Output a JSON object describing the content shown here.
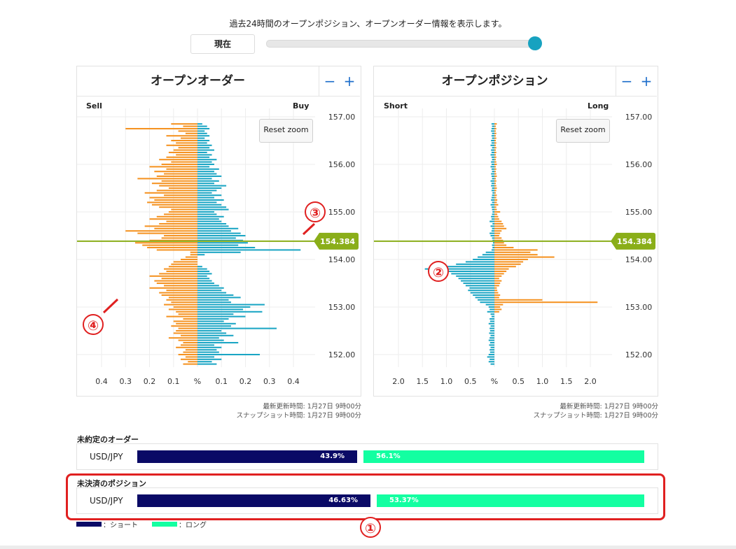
{
  "header": {
    "description": "過去24時間のオープンポジション、オープンオーダー情報を表示します。",
    "now_button": "現在"
  },
  "colors": {
    "sell_bar": "#f59221",
    "buy_bar": "#1aa5c4",
    "price_line": "#8aae19",
    "short_bar": "#0a0a66",
    "long_bar": "#13ffa1",
    "annotation": "#e02020"
  },
  "panels": {
    "orders": {
      "title": "オープンオーダー",
      "minus": "−",
      "plus": "+",
      "left_label": "Sell",
      "right_label": "Buy",
      "reset_zoom": "Reset zoom",
      "meta_line1": "最新更新時間: 1月27日 9時00分",
      "meta_line2": "スナップショット時間: 1月27日 9時00分"
    },
    "positions": {
      "title": "オープンポジション",
      "minus": "−",
      "plus": "+",
      "left_label": "Short",
      "right_label": "Long",
      "reset_zoom": "Reset zoom",
      "meta_line1": "最新更新時間: 1月27日 9時00分",
      "meta_line2": "スナップショット時間: 1月27日 9時00分"
    }
  },
  "chart_data": [
    {
      "type": "bar",
      "orientation": "horizontal-butterfly",
      "title": "オープンオーダー",
      "left_series_name": "Sell",
      "right_series_name": "Buy",
      "current_price": 154.384,
      "current_price_label": "154.384",
      "y_ticks": [
        "157.00",
        "156.00",
        "155.00",
        "154.00",
        "153.00",
        "152.00"
      ],
      "ylim": [
        151.75,
        157.1
      ],
      "x_ticks": [
        "0.4",
        "0.3",
        "0.2",
        "0.1",
        "%",
        "0.1",
        "0.2",
        "0.3",
        "0.4"
      ],
      "xlim": [
        -0.4,
        0.4
      ],
      "grid": true,
      "price_step": 0.05,
      "price_start": 151.8,
      "sell": [
        0.06,
        0.04,
        0.07,
        0.05,
        0.08,
        0.06,
        0.05,
        0.09,
        0.07,
        0.06,
        0.08,
        0.12,
        0.07,
        0.1,
        0.09,
        0.08,
        0.11,
        0.09,
        0.1,
        0.06,
        0.13,
        0.08,
        0.09,
        0.12,
        0.1,
        0.14,
        0.11,
        0.13,
        0.12,
        0.15,
        0.16,
        0.13,
        0.2,
        0.14,
        0.17,
        0.18,
        0.15,
        0.2,
        0.16,
        0.13,
        0.14,
        0.12,
        0.11,
        0.1,
        0.07,
        0.05,
        0.03,
        0.03,
        0.17,
        0.21,
        0.23,
        0.26,
        0.2,
        0.15,
        0.14,
        0.25,
        0.3,
        0.18,
        0.22,
        0.16,
        0.13,
        0.2,
        0.17,
        0.14,
        0.12,
        0.11,
        0.16,
        0.19,
        0.21,
        0.18,
        0.2,
        0.14,
        0.22,
        0.17,
        0.12,
        0.16,
        0.19,
        0.15,
        0.25,
        0.17,
        0.14,
        0.18,
        0.13,
        0.2,
        0.15,
        0.11,
        0.16,
        0.13,
        0.09,
        0.12,
        0.1,
        0.08,
        0.13,
        0.09,
        0.11,
        0.07,
        0.13,
        0.05,
        0.08,
        0.3,
        0.06,
        0.11
      ],
      "buy": [
        0.08,
        0.06,
        0.1,
        0.07,
        0.26,
        0.09,
        0.08,
        0.1,
        0.07,
        0.17,
        0.11,
        0.09,
        0.15,
        0.12,
        0.1,
        0.33,
        0.14,
        0.16,
        0.11,
        0.13,
        0.2,
        0.15,
        0.27,
        0.19,
        0.22,
        0.28,
        0.14,
        0.13,
        0.18,
        0.15,
        0.12,
        0.1,
        0.11,
        0.09,
        0.07,
        0.06,
        0.05,
        0.04,
        0.06,
        0.05,
        0.04,
        0.02,
        0,
        0,
        0,
        0,
        0.03,
        0.18,
        0.43,
        0.24,
        0.17,
        0.21,
        0.19,
        0.16,
        0.2,
        0.18,
        0.14,
        0.17,
        0.13,
        0.12,
        0.1,
        0.09,
        0.11,
        0.08,
        0.07,
        0.13,
        0.12,
        0.1,
        0.08,
        0.11,
        0.07,
        0.1,
        0.06,
        0.08,
        0.1,
        0.12,
        0.07,
        0.09,
        0.06,
        0.1,
        0.08,
        0.07,
        0.09,
        0.05,
        0.07,
        0.06,
        0.08,
        0.05,
        0.06,
        0.04,
        0.07,
        0.05,
        0.06,
        0.04,
        0.05,
        0.03,
        0.05,
        0.04,
        0.03,
        0.05,
        0.04,
        0.02
      ]
    },
    {
      "type": "bar",
      "orientation": "horizontal-butterfly",
      "title": "オープンポジション",
      "left_series_name": "Short",
      "right_series_name": "Long",
      "current_price": 154.384,
      "current_price_label": "154.384",
      "y_ticks": [
        "157.00",
        "156.00",
        "155.00",
        "154.00",
        "153.00",
        "152.00"
      ],
      "ylim": [
        151.75,
        157.1
      ],
      "x_ticks": [
        "2.0",
        "1.5",
        "1.0",
        "0.5",
        "%",
        "0.5",
        "1.0",
        "1.5",
        "2.0"
      ],
      "xlim": [
        -2.0,
        2.0
      ],
      "grid": true,
      "price_step": 0.05,
      "price_start": 151.8,
      "short": [
        0.08,
        0.12,
        0.1,
        0.15,
        0.12,
        0.09,
        0.1,
        0.08,
        0.11,
        0.09,
        0.12,
        0.1,
        0.08,
        0.11,
        0.09,
        0.1,
        0.08,
        0.12,
        0.09,
        0.1,
        0.06,
        0.08,
        0.15,
        0.1,
        0.12,
        0.18,
        0.3,
        0.35,
        0.4,
        0.45,
        0.5,
        0.55,
        0.52,
        0.6,
        0.65,
        0.7,
        0.75,
        0.8,
        0.9,
        0.95,
        1.45,
        1.0,
        0.8,
        0.6,
        0.45,
        0.35,
        0.25,
        0.18,
        0.06,
        0.04,
        0.05,
        0.03,
        0.04,
        0.05,
        0.08,
        0.1,
        0.06,
        0.05,
        0.08,
        0.04,
        0.1,
        0.06,
        0.07,
        0.05,
        0.04,
        0.05,
        0.06,
        0.08,
        0.05,
        0.07,
        0.06,
        0.05,
        0.04,
        0.06,
        0.05,
        0.07,
        0.06,
        0.08,
        0.05,
        0.06,
        0.07,
        0.05,
        0.06,
        0.08,
        0.06,
        0.07,
        0.05,
        0.06,
        0.08,
        0.06,
        0.07,
        0.05,
        0.08,
        0.06,
        0.07,
        0.05,
        0.06,
        0.05,
        0.07,
        0.06,
        0.05,
        0.06
      ],
      "long": [
        0,
        0,
        0,
        0,
        0,
        0,
        0,
        0,
        0,
        0,
        0,
        0,
        0,
        0,
        0,
        0,
        0,
        0,
        0,
        0,
        0,
        0,
        0.1,
        0.15,
        0.12,
        0.18,
        2.15,
        1.0,
        0.1,
        0.12,
        0.08,
        0.06,
        0.05,
        0.1,
        0.12,
        0.15,
        0.1,
        0.15,
        0.2,
        0.25,
        0.3,
        0.45,
        0.55,
        0.6,
        0.7,
        1.25,
        0.9,
        0.75,
        0.9,
        0.4,
        0.25,
        0.2,
        0.18,
        0.15,
        0.1,
        0.12,
        0.15,
        0.25,
        0.2,
        0.18,
        0.15,
        0.1,
        0.08,
        0.06,
        0.12,
        0.05,
        0.04,
        0.08,
        0.05,
        0.06,
        0.04,
        0.05,
        0.03,
        0.04,
        0.05,
        0.04,
        0.03,
        0.04,
        0.03,
        0.05,
        0.04,
        0.03,
        0.04,
        0.03,
        0.05,
        0.04,
        0.03,
        0.04,
        0.03,
        0.04,
        0.03,
        0.04,
        0.03,
        0.04,
        0.03,
        0.04,
        0.03,
        0.04,
        0.03,
        0.04,
        0.03,
        0.05
      ]
    },
    {
      "type": "bar",
      "orientation": "stacked-horizontal",
      "title": "未約定のオーダー",
      "categories": [
        "USD/JPY"
      ],
      "series": [
        {
          "name": "ショート",
          "values": [
            43.9
          ],
          "label": "43.9%"
        },
        {
          "name": "ロング",
          "values": [
            56.1
          ],
          "label": "56.1%"
        }
      ]
    },
    {
      "type": "bar",
      "orientation": "stacked-horizontal",
      "title": "未決済のポジション",
      "categories": [
        "USD/JPY"
      ],
      "series": [
        {
          "name": "ショート",
          "values": [
            46.63
          ],
          "label": "46.63%"
        },
        {
          "name": "ロング",
          "values": [
            53.37
          ],
          "label": "53.37%"
        }
      ]
    }
  ],
  "summary": {
    "orders_title": "未約定のオーダー",
    "positions_title": "未決済のポジション",
    "pair": "USD/JPY",
    "orders_short_label": "43.9%",
    "orders_long_label": "56.1%",
    "positions_short_label": "46.63%",
    "positions_long_label": "53.37%"
  },
  "legend": {
    "short": "：ショート",
    "long": "：ロング"
  },
  "annotations": [
    "①",
    "②",
    "③",
    "④"
  ]
}
